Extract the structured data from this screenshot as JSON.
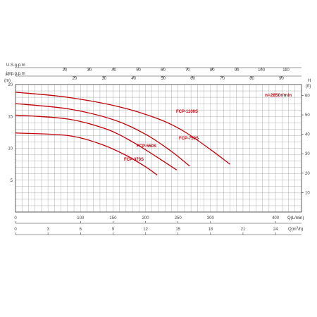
{
  "chart_data": {
    "type": "line",
    "speed_note": "n=2850r/min",
    "colors": {
      "curve": "#c0000a",
      "grid": "#8a8a8a",
      "border": "#333333"
    },
    "axes": {
      "usgpm": {
        "label": "U.S.g.p.m",
        "range": [
          0,
          116.3
        ],
        "ticks": [
          "20",
          "30",
          "40",
          "50",
          "60",
          "70",
          "80",
          "90",
          "100",
          "110"
        ],
        "tick_values": [
          20,
          30,
          40,
          50,
          60,
          70,
          80,
          90,
          100,
          110
        ]
      },
      "impgpm": {
        "label": "Imp.g.p.m",
        "range": [
          0,
          96.8
        ],
        "ticks": [
          "20",
          "30",
          "40",
          "50",
          "60",
          "70",
          "80",
          "90"
        ],
        "tick_values": [
          20,
          30,
          40,
          50,
          60,
          70,
          80,
          90
        ]
      },
      "lmin": {
        "label": "Q(L/min)",
        "range": [
          0,
          440
        ],
        "ticks": [
          "0",
          "100",
          "150",
          "200",
          "250",
          "300",
          "400"
        ],
        "tick_values": [
          0,
          100,
          150,
          200,
          250,
          300,
          400
        ]
      },
      "m3h": {
        "label_main": "Q(m",
        "label_sup": "3",
        "label_end": "/h)",
        "range": [
          0,
          26.4
        ],
        "ticks": [
          "0",
          "3",
          "6",
          "9",
          "12",
          "15",
          "18",
          "21",
          "24"
        ],
        "tick_values": [
          0,
          3,
          6,
          9,
          12,
          15,
          18,
          21,
          24
        ]
      },
      "head_m": {
        "label": "H",
        "unit": "(m)",
        "range": [
          0,
          20
        ],
        "ticks": [
          "5",
          "10",
          "15",
          "20"
        ],
        "tick_values": [
          5,
          10,
          15,
          20
        ]
      },
      "head_ft": {
        "label": "H",
        "unit": "(ft)",
        "range": [
          0,
          65.6
        ],
        "ticks": [
          "10",
          "20",
          "30",
          "40",
          "50",
          "60"
        ],
        "tick_values": [
          10,
          20,
          30,
          40,
          50,
          60
        ]
      }
    },
    "x_unit_of_series": "L/min",
    "y_unit_of_series": "m",
    "series": [
      {
        "name": "FCP-1100S",
        "x": [
          0,
          80,
          160,
          220,
          260,
          300,
          330
        ],
        "y": [
          18.8,
          18.0,
          16.5,
          14.6,
          12.6,
          9.8,
          7.5
        ]
      },
      {
        "name": "FCP-750S",
        "x": [
          0,
          80,
          150,
          200,
          240,
          268
        ],
        "y": [
          17.0,
          16.2,
          14.5,
          12.2,
          9.5,
          7.2
        ]
      },
      {
        "name": "FCP-550S",
        "x": [
          0,
          80,
          140,
          180,
          215,
          248
        ],
        "y": [
          15.2,
          14.6,
          13.0,
          11.0,
          8.8,
          6.6
        ]
      },
      {
        "name": "FCP-370S",
        "x": [
          0,
          80,
          130,
          170,
          200,
          218
        ],
        "y": [
          12.4,
          12.0,
          10.7,
          8.9,
          7.1,
          5.8
        ]
      }
    ]
  }
}
